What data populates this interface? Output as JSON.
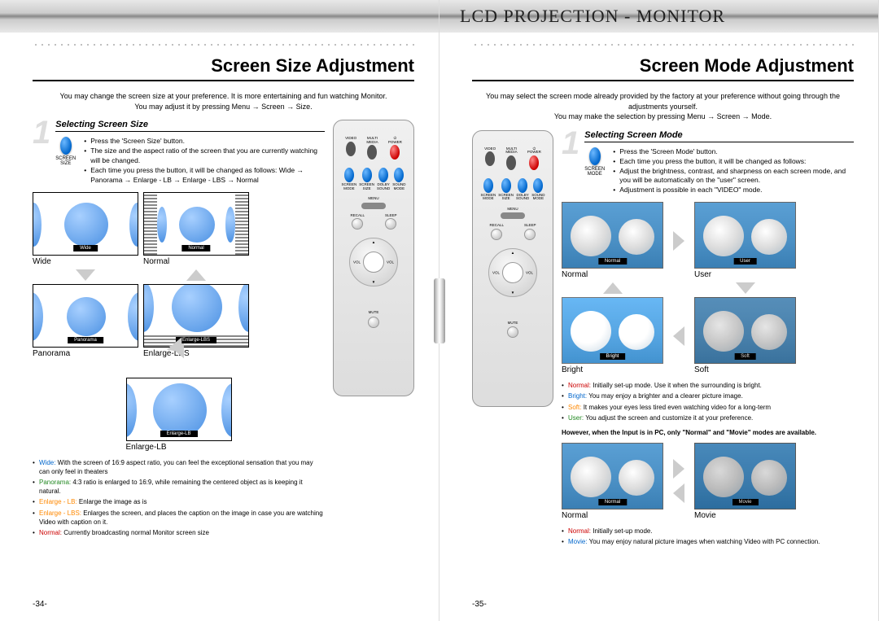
{
  "header_title": "LCD PROJECTION - MONITOR",
  "left_page": {
    "title": "Screen Size Adjustment",
    "intro": "You may change the screen size at your preference. It is more entertaining and fun watching Monitor.\nYou may adjust it by pressing Menu → Screen → Size.",
    "step_num": "1",
    "step_title": "Selecting Screen Size",
    "button_label": "SCREEN\nSIZE",
    "bullets": [
      "Press the 'Screen Size' button.",
      "The size and the aspect ratio of the screen that you are currently watching will be changed.",
      "Each time you press the button, it will be changed as follows: Wide → Panorama → Enlarge - LB → Enlarge - LBS → Normal"
    ],
    "screens": {
      "wide": "Wide",
      "normal": "Normal",
      "panorama": "Panorama",
      "enlarge_lbs": "Enlarge-LBS",
      "enlarge_lb": "Enlarge-LB"
    },
    "captions": {
      "wide": "Wide",
      "normal": "Normal",
      "panorama": "Panorama",
      "enlarge_lbs": "Enlarge-LBS",
      "enlarge_lb": "Enlarge-LB"
    },
    "descriptions": [
      {
        "term": "Wide:",
        "cls": "term-blue",
        "text": "With the screen of 16:9 aspect ratio, you can feel the exceptional sensation that you may can only feel in theaters"
      },
      {
        "term": "Panorama:",
        "cls": "term-green",
        "text": "4:3 ratio is enlarged to 16:9, while remaining the centered object as is keeping it natural."
      },
      {
        "term": "Enlarge - LB:",
        "cls": "term-orange",
        "text": "Enlarge the image as is"
      },
      {
        "term": "Enlarge - LBS:",
        "cls": "term-orange",
        "text": "Enlarges the screen, and places the caption on the image in case you are watching Video with caption on it."
      },
      {
        "term": "Normal:",
        "cls": "term-red",
        "text": "Currently broadcasting normal Monitor screen size"
      }
    ],
    "page_num": "-34-"
  },
  "right_page": {
    "title": "Screen Mode Adjustment",
    "intro": "You may select the screen mode already provided by the factory at your preference without going through the adjustments yourself.\nYou may make the selection by pressing Menu → Screen → Mode.",
    "step_num": "1",
    "step_title": "Selecting Screen Mode",
    "button_label": "SCREEN\nMODE",
    "bullets": [
      "Press the 'Screen Mode' button.",
      "Each time you press the button, it will be changed as follows:",
      "Adjust the brightness, contrast, and sharpness on each screen mode, and you will be automatically on the \"user\" screen.",
      "Adjustment is possible in each \"VIDEO\" mode."
    ],
    "modes": {
      "normal": "Normal",
      "user": "User",
      "bright": "Bright",
      "soft": "Soft",
      "movie": "Movie"
    },
    "descriptions1": [
      {
        "term": "Normal:",
        "cls": "term-red",
        "text": "Initially set-up mode. Use it when the surrounding is bright."
      },
      {
        "term": "Bright:",
        "cls": "term-blue",
        "text": "You may enjoy a brighter and a clearer picture image."
      },
      {
        "term": "Soft:",
        "cls": "term-orange",
        "text": "It makes your eyes less tired even watching video for a long-term"
      },
      {
        "term": "User:",
        "cls": "term-green",
        "text": "You adjust the screen and customize it at your preference."
      }
    ],
    "note": "However, when the Input is in PC, only \"Normal\" and \"Movie\" modes are available.",
    "descriptions2": [
      {
        "term": "Normal:",
        "cls": "term-red",
        "text": "Initially set-up mode."
      },
      {
        "term": "Movie:",
        "cls": "term-blue",
        "text": "You may enjoy natural picture images when watching Video with PC connection."
      }
    ],
    "page_num": "-35-"
  },
  "remote": {
    "top_row": [
      "VIDEO",
      "MULTI\nMEDIA",
      "⏻\nPOWER"
    ],
    "row2": [
      "SCREEN\nMODE",
      "SCREEN\nSIZE",
      "DOLBY\nSOUND",
      "SOUND\nMODE"
    ],
    "menu": "MENU",
    "recall": "RECALL",
    "sleep": "SLEEP",
    "vol": "VOL",
    "mute": "MUTE"
  }
}
